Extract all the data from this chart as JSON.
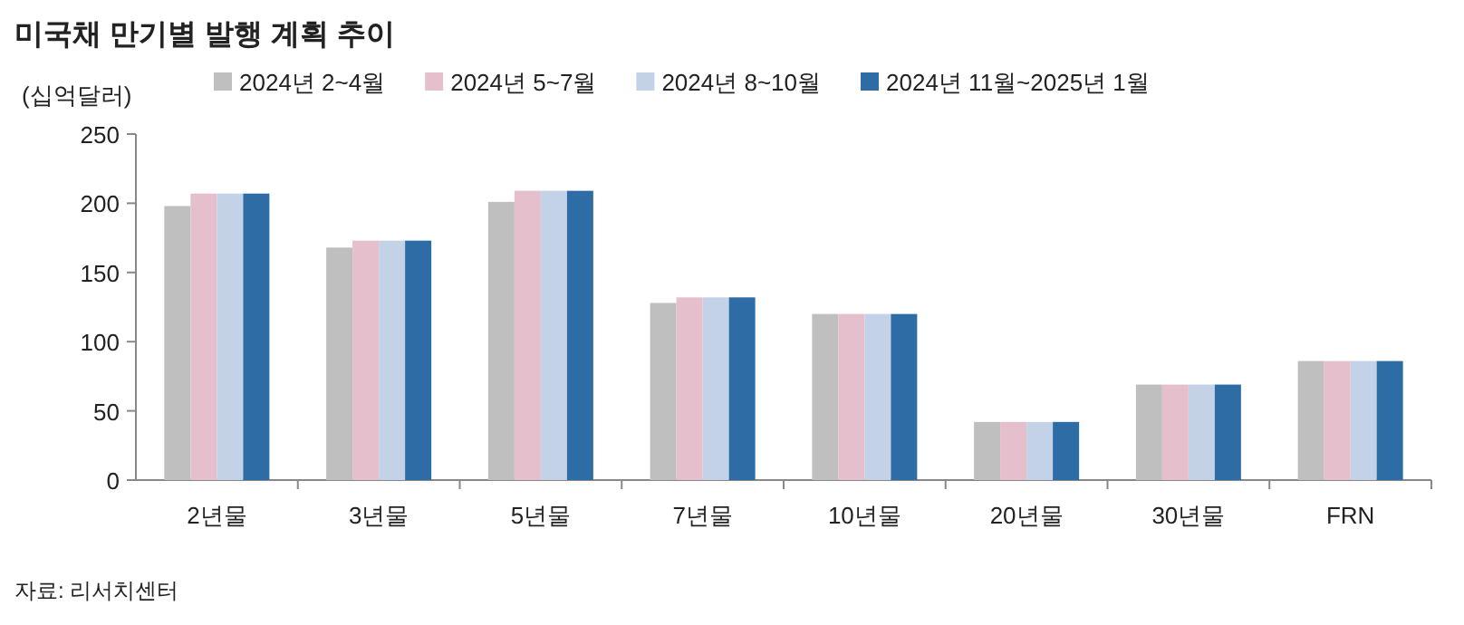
{
  "chart_data": {
    "type": "bar",
    "title": "미국채 만기별 발행 계획 추이",
    "ylabel": "(십억달러)",
    "categories": [
      "2년물",
      "3년물",
      "5년물",
      "7년물",
      "10년물",
      "20년물",
      "30년물",
      "FRN"
    ],
    "series": [
      {
        "name": "2024년 2~4월",
        "color": "#bfbfbf",
        "values": [
          198,
          168,
          201,
          128,
          120,
          42,
          69,
          86
        ]
      },
      {
        "name": "2024년 5~7월",
        "color": "#e6bfcd",
        "values": [
          207,
          173,
          209,
          132,
          120,
          42,
          69,
          86
        ]
      },
      {
        "name": "2024년 8~10월",
        "color": "#c4d2e8",
        "values": [
          207,
          173,
          209,
          132,
          120,
          42,
          69,
          86
        ]
      },
      {
        "name": "2024년 11월~2025년 1월",
        "color": "#2e6ca6",
        "values": [
          207,
          173,
          209,
          132,
          120,
          42,
          69,
          86
        ]
      }
    ],
    "ylim": [
      0,
      250
    ],
    "yticks": [
      0,
      50,
      100,
      150,
      200,
      250
    ],
    "legend": "top",
    "grid": false,
    "annotations": [
      "자료: 리서치센터"
    ]
  }
}
